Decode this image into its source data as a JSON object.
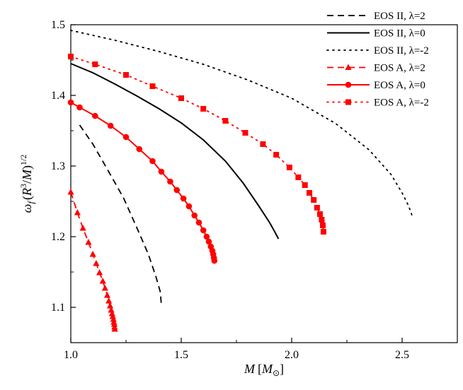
{
  "chart_data": {
    "type": "line",
    "xlabel": {
      "base": "M",
      "bracket_open": "[",
      "sub": "M",
      "subsub": "⊙",
      "bracket_close": "]"
    },
    "ylabel": {
      "omega": "ω",
      "omega_sub": "f",
      "open": "(",
      "R": "R",
      "R_sup": "3",
      "slash": "/",
      "M": "M",
      "close": ")",
      "sup": "1/2"
    },
    "xlim": [
      1.0,
      2.75
    ],
    "ylim": [
      1.05,
      1.5
    ],
    "x_ticks": [
      1.0,
      1.5,
      2.0,
      2.5
    ],
    "x_tick_labels": [
      "1.0",
      "1.5",
      "2.0",
      "2.5"
    ],
    "y_ticks": [
      1.1,
      1.2,
      1.3,
      1.4,
      1.5
    ],
    "y_tick_labels": [
      "1.1",
      "1.2",
      "1.3",
      "1.4",
      "1.5"
    ],
    "legend_position": "top-right",
    "series": [
      {
        "name": "EOS II, λ=2",
        "color": "#000000",
        "dash": "dashed",
        "marker": "none",
        "x": [
          1.04,
          1.1,
          1.17,
          1.24,
          1.3,
          1.35,
          1.385,
          1.405,
          1.41
        ],
        "y": [
          1.358,
          1.331,
          1.293,
          1.254,
          1.212,
          1.176,
          1.144,
          1.122,
          1.104
        ]
      },
      {
        "name": "EOS II, λ=0",
        "color": "#000000",
        "dash": "solid",
        "marker": "none",
        "x": [
          1.0,
          1.1,
          1.2,
          1.3,
          1.4,
          1.5,
          1.6,
          1.7,
          1.78,
          1.85,
          1.9,
          1.925,
          1.94
        ],
        "y": [
          1.445,
          1.432,
          1.416,
          1.399,
          1.381,
          1.361,
          1.337,
          1.307,
          1.276,
          1.244,
          1.22,
          1.206,
          1.197
        ]
      },
      {
        "name": "EOS II, λ=-2",
        "color": "#000000",
        "dash": "dotted",
        "marker": "none",
        "x": [
          1.0,
          1.2,
          1.4,
          1.6,
          1.8,
          2.0,
          2.2,
          2.35,
          2.45,
          2.5,
          2.53,
          2.545
        ],
        "y": [
          1.492,
          1.478,
          1.462,
          1.444,
          1.422,
          1.396,
          1.36,
          1.323,
          1.288,
          1.262,
          1.243,
          1.23
        ]
      },
      {
        "name": "EOS A, λ=2",
        "color": "#ff0000",
        "dash": "dashed",
        "marker": "triangle",
        "x": [
          1.0,
          1.03,
          1.055,
          1.08,
          1.1,
          1.115,
          1.13,
          1.145,
          1.155,
          1.165,
          1.172,
          1.178,
          1.183,
          1.187,
          1.19,
          1.193,
          1.195,
          1.197,
          1.198,
          1.199
        ],
        "y": [
          1.263,
          1.234,
          1.212,
          1.192,
          1.175,
          1.162,
          1.149,
          1.137,
          1.127,
          1.117,
          1.109,
          1.102,
          1.096,
          1.091,
          1.087,
          1.083,
          1.079,
          1.076,
          1.072,
          1.069
        ]
      },
      {
        "name": "EOS A, λ=0",
        "color": "#ff0000",
        "dash": "solid",
        "marker": "circle",
        "x": [
          1.0,
          1.04,
          1.11,
          1.18,
          1.25,
          1.31,
          1.37,
          1.41,
          1.45,
          1.48,
          1.51,
          1.535,
          1.56,
          1.58,
          1.6,
          1.615,
          1.625,
          1.634,
          1.641,
          1.645,
          1.648,
          1.65
        ],
        "y": [
          1.39,
          1.383,
          1.371,
          1.357,
          1.341,
          1.324,
          1.307,
          1.292,
          1.278,
          1.266,
          1.254,
          1.243,
          1.23,
          1.22,
          1.209,
          1.2,
          1.193,
          1.186,
          1.18,
          1.175,
          1.17,
          1.166
        ]
      },
      {
        "name": "EOS A, λ=-2",
        "color": "#ff0000",
        "dash": "dotted",
        "marker": "square",
        "x": [
          1.0,
          1.11,
          1.25,
          1.37,
          1.5,
          1.6,
          1.7,
          1.79,
          1.87,
          1.93,
          1.99,
          2.03,
          2.06,
          2.08,
          2.1,
          2.115,
          2.128,
          2.136,
          2.141,
          2.144
        ],
        "y": [
          1.455,
          1.444,
          1.429,
          1.413,
          1.396,
          1.381,
          1.364,
          1.347,
          1.331,
          1.316,
          1.298,
          1.284,
          1.273,
          1.262,
          1.252,
          1.241,
          1.232,
          1.224,
          1.216,
          1.207
        ]
      }
    ]
  }
}
